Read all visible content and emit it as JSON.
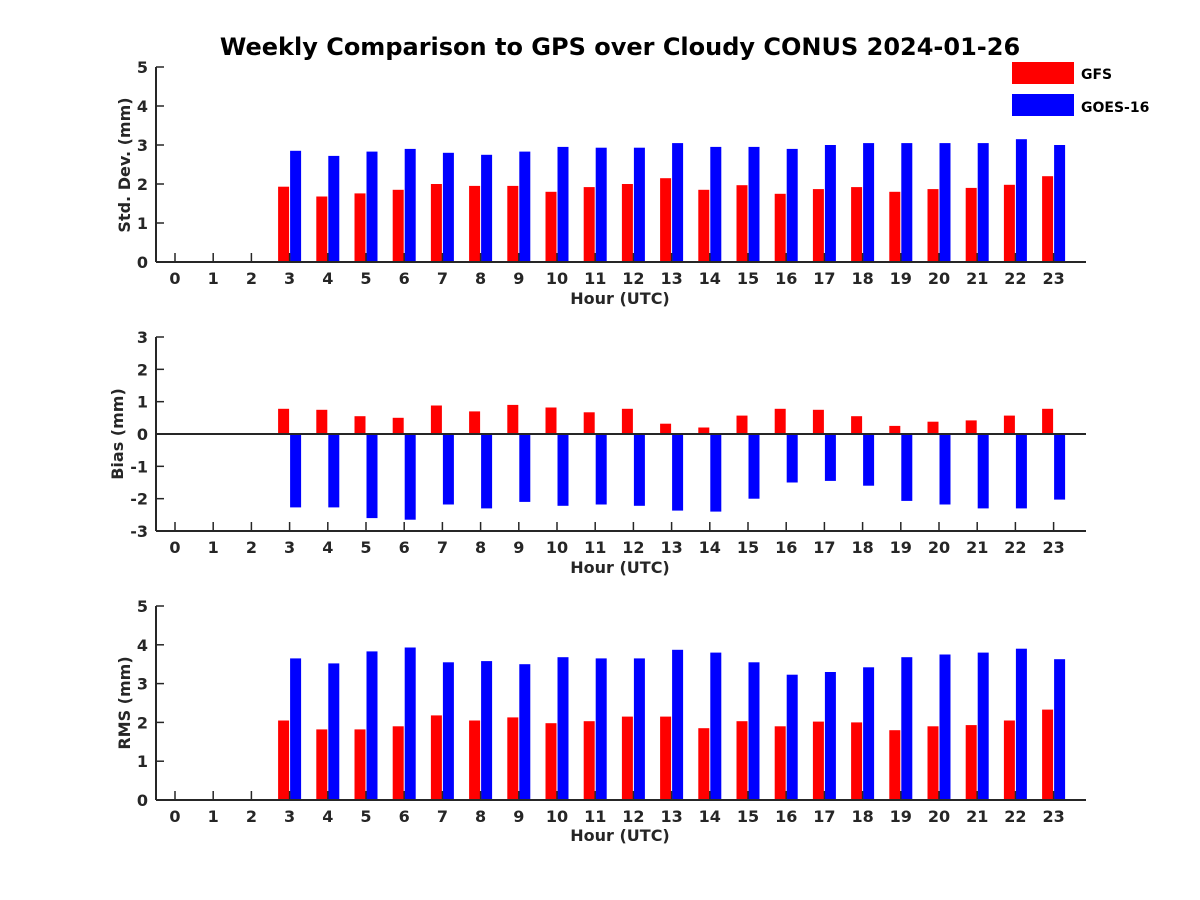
{
  "chart_data": {
    "type": "bar",
    "title": "Weekly Comparison to GPS over Cloudy CONUS 2024-01-26",
    "legend_placement": "top-right",
    "series_names": [
      "GFS",
      "GOES-16"
    ],
    "colors": {
      "GFS": "#ff0000",
      "GOES-16": "#0000ff"
    },
    "categories": [
      "0",
      "1",
      "2",
      "3",
      "4",
      "5",
      "6",
      "7",
      "8",
      "9",
      "10",
      "11",
      "12",
      "13",
      "14",
      "15",
      "16",
      "17",
      "18",
      "19",
      "20",
      "21",
      "22",
      "23"
    ],
    "panels": [
      {
        "ylabel": "Std. Dev. (mm)",
        "xlabel": "Hour (UTC)",
        "ylim": [
          0,
          5
        ],
        "yticks": [
          "0",
          "1",
          "2",
          "3",
          "4",
          "5"
        ],
        "grid": false,
        "series": [
          {
            "name": "GFS",
            "values": [
              null,
              null,
              null,
              1.93,
              1.68,
              1.76,
              1.85,
              2.0,
              1.95,
              1.95,
              1.8,
              1.92,
              2.0,
              2.15,
              1.85,
              1.97,
              1.75,
              1.87,
              1.92,
              1.8,
              1.87,
              1.9,
              1.98,
              2.2
            ]
          },
          {
            "name": "GOES-16",
            "values": [
              null,
              null,
              null,
              2.85,
              2.72,
              2.83,
              2.9,
              2.8,
              2.75,
              2.83,
              2.95,
              2.93,
              2.93,
              3.05,
              2.95,
              2.95,
              2.9,
              3.0,
              3.05,
              3.05,
              3.05,
              3.05,
              3.15,
              3.0
            ]
          }
        ]
      },
      {
        "ylabel": "Bias (mm)",
        "xlabel": "Hour (UTC)",
        "ylim": [
          -3,
          3
        ],
        "yticks": [
          "-3",
          "-2",
          "-1",
          "0",
          "1",
          "2",
          "3"
        ],
        "grid": false,
        "series": [
          {
            "name": "GFS",
            "values": [
              null,
              null,
              null,
              0.78,
              0.75,
              0.55,
              0.5,
              0.88,
              0.7,
              0.9,
              0.82,
              0.67,
              0.78,
              0.32,
              0.2,
              0.57,
              0.78,
              0.75,
              0.55,
              0.25,
              0.38,
              0.42,
              0.57,
              0.78
            ]
          },
          {
            "name": "GOES-16",
            "values": [
              null,
              null,
              null,
              -2.27,
              -2.27,
              -2.6,
              -2.65,
              -2.18,
              -2.3,
              -2.1,
              -2.22,
              -2.18,
              -2.22,
              -2.37,
              -2.4,
              -2.0,
              -1.5,
              -1.45,
              -1.6,
              -2.07,
              -2.18,
              -2.3,
              -2.3,
              -2.03
            ]
          }
        ]
      },
      {
        "ylabel": "RMS (mm)",
        "xlabel": "Hour (UTC)",
        "ylim": [
          0,
          5
        ],
        "yticks": [
          "0",
          "1",
          "2",
          "3",
          "4",
          "5"
        ],
        "grid": false,
        "series": [
          {
            "name": "GFS",
            "values": [
              null,
              null,
              null,
              2.05,
              1.82,
              1.82,
              1.9,
              2.18,
              2.05,
              2.13,
              1.98,
              2.03,
              2.15,
              2.15,
              1.85,
              2.03,
              1.9,
              2.02,
              2.0,
              1.8,
              1.9,
              1.93,
              2.05,
              2.33
            ]
          },
          {
            "name": "GOES-16",
            "values": [
              null,
              null,
              null,
              3.65,
              3.52,
              3.83,
              3.93,
              3.55,
              3.58,
              3.5,
              3.68,
              3.65,
              3.65,
              3.87,
              3.8,
              3.55,
              3.23,
              3.3,
              3.42,
              3.68,
              3.75,
              3.8,
              3.9,
              3.63
            ]
          }
        ]
      }
    ]
  }
}
